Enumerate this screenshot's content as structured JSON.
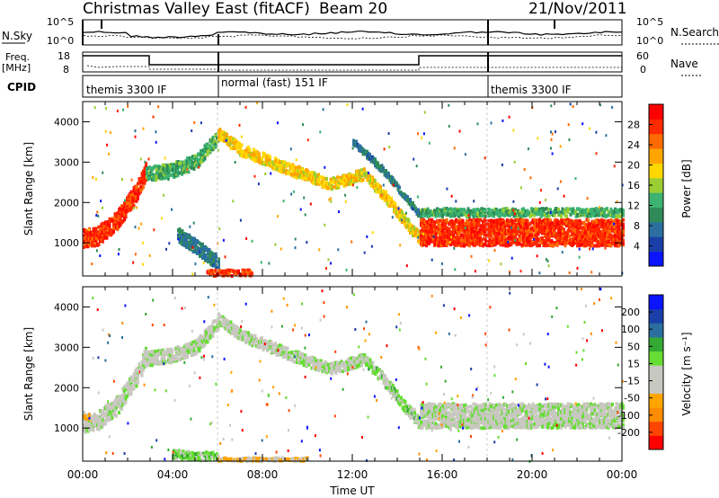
{
  "header": {
    "title": "Christmas Valley East (fitACF)",
    "beam": "Beam 20",
    "date": "21/Nov/2011"
  },
  "status_panels": {
    "nsky_label": "N.Sky",
    "nsky_ticks": [
      "10^5",
      "10^0"
    ],
    "nsearch_label": "N.Search",
    "nsearch_ticks": [
      "10^5",
      "10^0"
    ],
    "freq_label": [
      "Freq.",
      "[MHz]"
    ],
    "freq_ticks": [
      "18",
      "8"
    ],
    "nave_label": "Nave",
    "nave_ticks": [
      "60",
      "0"
    ],
    "cpid_label": "CPID",
    "cpid_segments": [
      {
        "label": "themis 3300 IF",
        "start": "00:00",
        "end": "06:00"
      },
      {
        "label": "normal (fast) 151 IF",
        "start": "06:00",
        "end": "18:00"
      },
      {
        "label": "themis 3300 IF",
        "start": "18:00",
        "end": "24:00"
      }
    ]
  },
  "chart_data": [
    {
      "type": "heatmap",
      "title": "",
      "xlabel": "Time UT",
      "ylabel": "Slant Range [km]",
      "x_ticks": [
        "00:00",
        "04:00",
        "08:00",
        "12:00",
        "16:00",
        "20:00",
        "00:00"
      ],
      "y_ticks": [
        "1000",
        "2000",
        "3000",
        "4000"
      ],
      "xlim_hours": [
        0,
        24
      ],
      "ylim": [
        180,
        4500
      ],
      "colorbar": {
        "label": "Power [dB]",
        "ticks": [
          "28",
          "24",
          "20",
          "16",
          "12",
          "8",
          "4"
        ],
        "range": [
          0,
          30
        ],
        "colors": [
          "#0a14ff",
          "#1a3fa8",
          "#2b6fa0",
          "#2e8b57",
          "#3cb371",
          "#9acd32",
          "#ffd700",
          "#ffa500",
          "#ff6a00",
          "#ff2a00",
          "#ff0000"
        ]
      },
      "bands": [
        {
          "t": [
            0.0,
            0.6,
            1.5,
            2.4,
            2.8
          ],
          "r": [
            1100,
            1150,
            1550,
            2300,
            2800
          ],
          "w": 450,
          "v": 26
        },
        {
          "t": [
            2.8,
            4.0,
            5.0,
            6.0
          ],
          "r": [
            2700,
            2800,
            3000,
            3600
          ],
          "w": 350,
          "v": 12
        },
        {
          "t": [
            6.0,
            7.0,
            9.0,
            11.0,
            12.5,
            13.5,
            14.5,
            15.0
          ],
          "r": [
            3700,
            3300,
            2850,
            2450,
            2700,
            2100,
            1400,
            1100
          ],
          "w": 280,
          "v": 18
        },
        {
          "t": [
            12.0,
            13.5,
            14.8,
            15.2
          ],
          "r": [
            3500,
            2700,
            1800,
            1500
          ],
          "w": 160,
          "v": 8
        },
        {
          "t": [
            15.0,
            17.0,
            19.0,
            21.0,
            23.0,
            24.0
          ],
          "r": [
            1250,
            1250,
            1250,
            1250,
            1250,
            1250
          ],
          "w": 650,
          "v": 26
        },
        {
          "t": [
            15.0,
            18.0,
            21.0,
            24.0
          ],
          "r": [
            1750,
            1750,
            1750,
            1750
          ],
          "w": 200,
          "v": 12
        },
        {
          "t": [
            4.2,
            5.0,
            6.0
          ],
          "r": [
            1200,
            900,
            500
          ],
          "w": 350,
          "v": 8
        },
        {
          "t": [
            5.5,
            6.5,
            7.5
          ],
          "r": [
            250,
            250,
            250
          ],
          "w": 150,
          "v": 26
        }
      ]
    },
    {
      "type": "heatmap",
      "title": "",
      "xlabel": "Time UT",
      "ylabel": "Slant Range [km]",
      "x_ticks": [
        "00:00",
        "04:00",
        "08:00",
        "12:00",
        "16:00",
        "20:00",
        "00:00"
      ],
      "y_ticks": [
        "1000",
        "2000",
        "3000",
        "4000"
      ],
      "xlim_hours": [
        0,
        24
      ],
      "ylim": [
        180,
        4500
      ],
      "colorbar": {
        "label": "Velocity [m s⁻¹]",
        "ticks": [
          "200",
          "100",
          "50",
          "15",
          "-15",
          "-50",
          "-100",
          "-200"
        ],
        "range": [
          -250,
          250
        ],
        "colors": [
          "#ff0000",
          "#ff4500",
          "#ff8c00",
          "#ffa500",
          "#c8c8c0",
          "#c8c8c0",
          "#66dd33",
          "#33aa33",
          "#2b6fa0",
          "#1a3fa8",
          "#0a14ff"
        ]
      },
      "bands": [
        {
          "t": [
            0.0,
            0.6,
            1.5,
            2.4,
            2.8
          ],
          "r": [
            1100,
            1150,
            1550,
            2300,
            2800
          ],
          "w": 450,
          "v": 0
        },
        {
          "t": [
            0.0,
            0.3
          ],
          "r": [
            1300,
            1300
          ],
          "w": 200,
          "v": -80
        },
        {
          "t": [
            2.8,
            4.0,
            5.0,
            6.0
          ],
          "r": [
            2700,
            2800,
            3000,
            3600
          ],
          "w": 350,
          "v": 0
        },
        {
          "t": [
            6.0,
            7.0,
            9.0,
            11.0,
            12.5
          ],
          "r": [
            3700,
            3300,
            2850,
            2450,
            2700
          ],
          "w": 280,
          "v": 0
        },
        {
          "t": [
            12.5,
            13.5,
            14.5,
            15.0
          ],
          "r": [
            2700,
            2100,
            1400,
            1100
          ],
          "w": 280,
          "v": 30
        },
        {
          "t": [
            15.0,
            17.0,
            19.0,
            21.0,
            23.0,
            24.0
          ],
          "r": [
            1300,
            1300,
            1300,
            1300,
            1300,
            1300
          ],
          "w": 600,
          "v": 0
        },
        {
          "t": [
            4.0,
            5.0,
            6.0
          ],
          "r": [
            350,
            300,
            300
          ],
          "w": 200,
          "v": 40
        },
        {
          "t": [
            6.0,
            8.0,
            10.0
          ],
          "r": [
            220,
            220,
            220
          ],
          "w": 80,
          "v": -60
        }
      ]
    }
  ]
}
